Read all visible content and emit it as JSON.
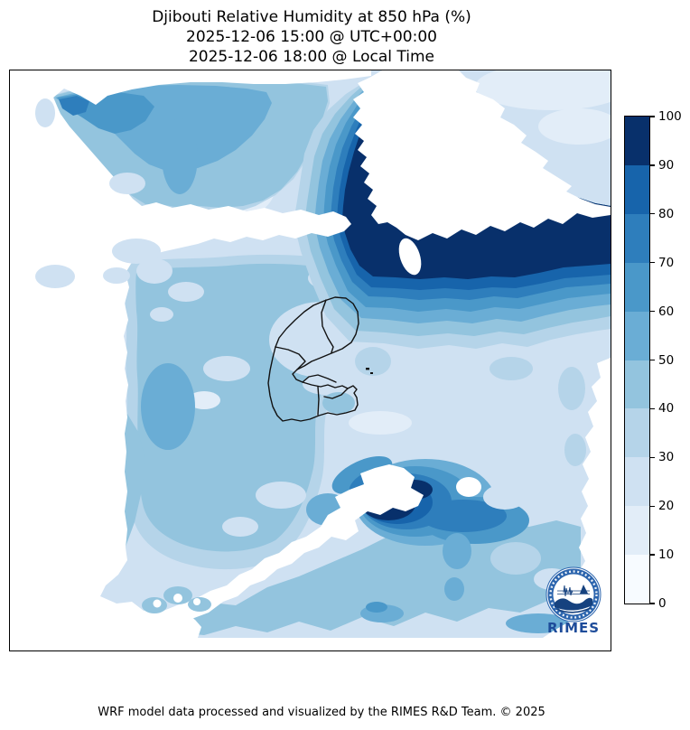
{
  "title": {
    "line1": "Djibouti Relative Humidity at 850 hPa (%)",
    "line2": "2025-12-06 15:00 @ UTC+00:00",
    "line3": "2025-12-06 18:00 @ Local Time"
  },
  "footer": {
    "credit": "WRF model data processed and visualized by the RIMES R&D Team. © 2025"
  },
  "colorbar": {
    "min": 0,
    "max": 100,
    "unit": "%",
    "ticks": [
      0,
      10,
      20,
      30,
      40,
      50,
      60,
      70,
      80,
      90,
      100
    ],
    "levels": [
      {
        "from": 0,
        "to": 10,
        "color": "#f7fbff"
      },
      {
        "from": 10,
        "to": 20,
        "color": "#e2edf8"
      },
      {
        "from": 20,
        "to": 30,
        "color": "#cfe1f2"
      },
      {
        "from": 30,
        "to": 40,
        "color": "#b5d4e9"
      },
      {
        "from": 40,
        "to": 50,
        "color": "#93c4de"
      },
      {
        "from": 50,
        "to": 60,
        "color": "#6aadd5"
      },
      {
        "from": 60,
        "to": 70,
        "color": "#4a98c9"
      },
      {
        "from": 70,
        "to": 80,
        "color": "#2e7ebc"
      },
      {
        "from": 80,
        "to": 90,
        "color": "#1764ab"
      },
      {
        "from": 90,
        "to": 100,
        "color": "#08306b"
      }
    ]
  },
  "map": {
    "region": "Djibouti",
    "no_data_color": "#ffffff",
    "outline_color": "#111111"
  },
  "logo": {
    "text": "RIMES"
  },
  "chart_data": {
    "type": "filled_contour_map",
    "title": "Djibouti Relative Humidity at 850 hPa (%)",
    "variable": "Relative Humidity",
    "pressure_level_hPa": 850,
    "unit": "%",
    "valid_time_utc": "2025-12-06 15:00",
    "valid_time_local": "2025-12-06 18:00",
    "contour_levels": [
      0,
      10,
      20,
      30,
      40,
      50,
      60,
      70,
      80,
      90,
      100
    ],
    "legend_position": "right"
  }
}
